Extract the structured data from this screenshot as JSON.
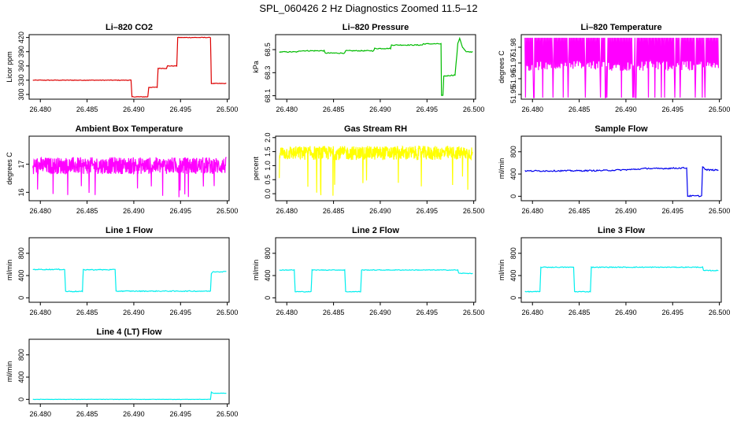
{
  "figure": {
    "title": "SPL_060426  2 Hz Diagnostics Zoomed 11.5–12"
  },
  "chart_data": [
    {
      "type": "line",
      "title": "Li–820 CO2",
      "ylabel": "Licor ppm",
      "xlim": [
        26.4788,
        26.5002
      ],
      "ylim": [
        290,
        426
      ],
      "xticks": [
        26.48,
        26.485,
        26.49,
        26.495,
        26.5
      ],
      "yticks": [
        300,
        330,
        360,
        390,
        420
      ],
      "color": "#dd0000",
      "noise": 0.6,
      "series": [
        {
          "x": [
            26.4792,
            26.4897,
            26.4898,
            26.4915,
            26.4916,
            26.4925,
            26.4926,
            26.4935,
            26.4936,
            26.4946,
            26.4947,
            26.4982,
            26.4983,
            26.4999
          ],
          "y": [
            330,
            330,
            295,
            295,
            315,
            315,
            355,
            355,
            360,
            360,
            420,
            420,
            323,
            323
          ]
        }
      ]
    },
    {
      "type": "line",
      "title": "Li–820 Pressure",
      "ylabel": "kPa",
      "xlim": [
        26.4788,
        26.5002
      ],
      "ylim": [
        68.07,
        68.63
      ],
      "xticks": [
        26.48,
        26.485,
        26.49,
        26.495,
        26.5
      ],
      "yticks": [
        68.1,
        68.3,
        68.5
      ],
      "color": "#00bb00",
      "noise": 0.004,
      "series": [
        {
          "x": [
            26.4792,
            26.4812,
            26.4813,
            26.484,
            26.4841,
            26.4862,
            26.4863,
            26.4893,
            26.4894,
            26.4911,
            26.4912,
            26.4945,
            26.4946,
            26.4965,
            26.49655,
            26.4967,
            26.4968,
            26.498,
            26.4983,
            26.4985,
            26.4988,
            26.4992,
            26.4999
          ],
          "y": [
            68.48,
            68.48,
            68.49,
            68.49,
            68.47,
            68.47,
            68.49,
            68.49,
            68.51,
            68.51,
            68.54,
            68.54,
            68.55,
            68.55,
            68.1,
            68.1,
            68.27,
            68.28,
            68.55,
            68.6,
            68.52,
            68.48,
            68.48
          ]
        }
      ]
    },
    {
      "type": "line",
      "title": "Li–820 Temperature",
      "ylabel": "degrees C",
      "xlim": [
        26.4788,
        26.5002
      ],
      "ylim": [
        51.947,
        51.988
      ],
      "xticks": [
        26.48,
        26.485,
        26.49,
        26.495,
        26.5
      ],
      "yticks": [
        51.95,
        51.96,
        51.97,
        51.98
      ],
      "color": "#ff00ff",
      "noise": 0,
      "series": [
        {
          "x": [
            26.4792,
            26.4999
          ],
          "y": [
            51.97,
            51.97
          ],
          "pattern": "oscillate",
          "low": 51.965,
          "high": 51.986,
          "spike_low": 51.948
        }
      ]
    },
    {
      "type": "line",
      "title": "Ambient Box Temperature",
      "ylabel": "degrees C",
      "xlim": [
        26.4788,
        26.5002
      ],
      "ylim": [
        15.7,
        18.0
      ],
      "xticks": [
        26.48,
        26.485,
        26.49,
        26.495,
        26.5
      ],
      "yticks": [
        16.0,
        17.0
      ],
      "color": "#ff00ff",
      "noise": 0.3,
      "series": [
        {
          "x": [
            26.4792,
            26.4999
          ],
          "y": [
            16.95,
            16.95
          ],
          "pattern": "noise",
          "spike_low": 15.8
        }
      ]
    },
    {
      "type": "line",
      "title": "Gas Stream RH",
      "ylabel": "percent",
      "xlim": [
        26.4788,
        26.5002
      ],
      "ylim": [
        -0.25,
        2.05
      ],
      "xticks": [
        26.48,
        26.485,
        26.49,
        26.495,
        26.5
      ],
      "yticks": [
        0.0,
        0.5,
        1.0,
        1.5,
        2.0
      ],
      "color": "#ffff00",
      "noise": 0.25,
      "series": [
        {
          "x": [
            26.4792,
            26.4999
          ],
          "y": [
            1.45,
            1.45
          ],
          "pattern": "noise",
          "spike_low": -0.15
        }
      ]
    },
    {
      "type": "line",
      "title": "Sample Flow",
      "ylabel": "ml/min",
      "xlim": [
        26.4788,
        26.5002
      ],
      "ylim": [
        -80,
        1080
      ],
      "xticks": [
        26.48,
        26.485,
        26.49,
        26.495,
        26.5
      ],
      "yticks": [
        0,
        400,
        800
      ],
      "color": "#0000ee",
      "noise": 12,
      "series": [
        {
          "x": [
            26.4792,
            26.486,
            26.488,
            26.4905,
            26.4915,
            26.4925,
            26.4926,
            26.4965,
            26.4966,
            26.4981,
            26.4982,
            26.4985,
            26.4999
          ],
          "y": [
            455,
            460,
            465,
            480,
            490,
            505,
            495,
            510,
            5,
            5,
            540,
            475,
            470
          ]
        }
      ]
    },
    {
      "type": "line",
      "title": "Line 1 Flow",
      "ylabel": "ml/min",
      "xlim": [
        26.4788,
        26.5002
      ],
      "ylim": [
        -80,
        1080
      ],
      "xticks": [
        26.48,
        26.485,
        26.49,
        26.495,
        26.5
      ],
      "yticks": [
        0,
        400,
        800
      ],
      "color": "#00eeee",
      "noise": 8,
      "series": [
        {
          "x": [
            26.4792,
            26.4826,
            26.4827,
            26.4845,
            26.4846,
            26.488,
            26.4881,
            26.4982,
            26.4983,
            26.4985,
            26.4999
          ],
          "y": [
            510,
            510,
            115,
            115,
            505,
            505,
            120,
            120,
            440,
            470,
            470
          ]
        }
      ]
    },
    {
      "type": "line",
      "title": "Line 2 Flow",
      "ylabel": "ml/min",
      "xlim": [
        26.4788,
        26.5002
      ],
      "ylim": [
        -80,
        1080
      ],
      "xticks": [
        26.48,
        26.485,
        26.49,
        26.495,
        26.5
      ],
      "yticks": [
        0,
        400,
        800
      ],
      "color": "#00eeee",
      "noise": 6,
      "series": [
        {
          "x": [
            26.4792,
            26.4808,
            26.4809,
            26.4826,
            26.4827,
            26.4862,
            26.4863,
            26.4879,
            26.488,
            26.4983,
            26.4984,
            26.4999
          ],
          "y": [
            500,
            500,
            110,
            110,
            500,
            500,
            110,
            110,
            500,
            500,
            440,
            440
          ]
        }
      ]
    },
    {
      "type": "line",
      "title": "Line 3 Flow",
      "ylabel": "ml/min",
      "xlim": [
        26.4788,
        26.5002
      ],
      "ylim": [
        -80,
        1080
      ],
      "xticks": [
        26.48,
        26.485,
        26.49,
        26.495,
        26.5
      ],
      "yticks": [
        0,
        400,
        800
      ],
      "color": "#00eeee",
      "noise": 7,
      "series": [
        {
          "x": [
            26.4792,
            26.4808,
            26.4809,
            26.4844,
            26.4845,
            26.4862,
            26.4863,
            26.4982,
            26.4983,
            26.4999
          ],
          "y": [
            110,
            110,
            550,
            550,
            110,
            110,
            550,
            550,
            490,
            490
          ]
        }
      ]
    },
    {
      "type": "line",
      "title": "Line 4 (LT) Flow",
      "ylabel": "ml/min",
      "xlim": [
        26.4788,
        26.5002
      ],
      "ylim": [
        -80,
        1080
      ],
      "xticks": [
        26.48,
        26.485,
        26.49,
        26.495,
        26.5
      ],
      "yticks": [
        0,
        400,
        800
      ],
      "color": "#00eeee",
      "noise": 3,
      "series": [
        {
          "x": [
            26.4792,
            26.4982,
            26.4983,
            26.4985,
            26.4999
          ],
          "y": [
            0,
            0,
            130,
            110,
            110
          ]
        }
      ]
    }
  ]
}
